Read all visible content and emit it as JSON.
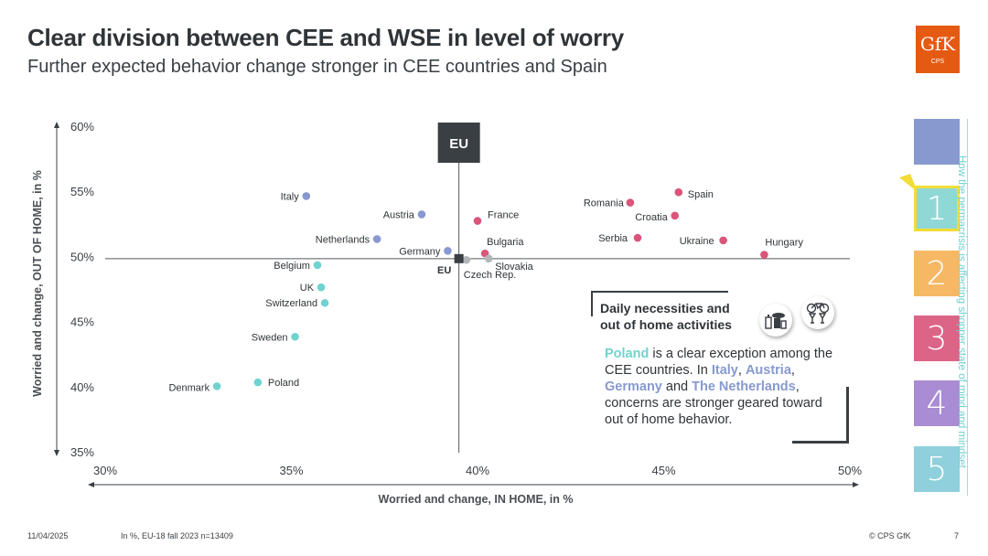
{
  "header": {
    "title": "Clear division between CEE and WSE in level of worry",
    "subtitle": "Further expected behavior change stronger in CEE countries and Spain",
    "logo_text": "GfK",
    "logo_sub": "CPS"
  },
  "chart_data": {
    "type": "scatter",
    "xlabel": "Worried and change, IN HOME, in %",
    "ylabel": "Worried and change, OUT OF HOME, in %",
    "xlim": [
      30,
      50
    ],
    "ylim": [
      35,
      60
    ],
    "x_ticks": [
      30,
      35,
      40,
      45,
      50
    ],
    "x_tick_labels": [
      "30%",
      "35%",
      "40%",
      "45%",
      "50%"
    ],
    "y_ticks": [
      35,
      40,
      45,
      50,
      55,
      60
    ],
    "y_tick_labels": [
      "35%",
      "40%",
      "45%",
      "50%",
      "55%",
      "60%"
    ],
    "reference": {
      "label": "EU",
      "box_label": "EU",
      "x": 39.5,
      "y": 49.9
    },
    "colors": {
      "teal": "#6fd3cf",
      "blue": "#8799cf",
      "pink": "#d9557a",
      "grey": "#b3b6b9",
      "dark": "#3a3f44"
    },
    "points": [
      {
        "name": "Italy",
        "x": 35.4,
        "y": 54.7,
        "group": "blue"
      },
      {
        "name": "Austria",
        "x": 38.5,
        "y": 53.3,
        "group": "blue"
      },
      {
        "name": "Netherlands",
        "x": 37.3,
        "y": 51.4,
        "group": "blue"
      },
      {
        "name": "Germany",
        "x": 39.2,
        "y": 50.5,
        "group": "blue"
      },
      {
        "name": "Belgium",
        "x": 35.7,
        "y": 49.4,
        "group": "teal"
      },
      {
        "name": "UK",
        "x": 35.8,
        "y": 47.7,
        "group": "teal"
      },
      {
        "name": "Switzerland",
        "x": 35.9,
        "y": 46.5,
        "group": "teal"
      },
      {
        "name": "Sweden",
        "x": 35.1,
        "y": 43.9,
        "group": "teal"
      },
      {
        "name": "Poland",
        "x": 34.1,
        "y": 40.4,
        "group": "teal"
      },
      {
        "name": "Denmark",
        "x": 33.0,
        "y": 40.1,
        "group": "teal"
      },
      {
        "name": "France",
        "x": 40.0,
        "y": 52.8,
        "group": "pink"
      },
      {
        "name": "Bulgaria",
        "x": 40.2,
        "y": 50.3,
        "group": "pink"
      },
      {
        "name": "Czech Rep.",
        "x": 39.7,
        "y": 49.8,
        "group": "grey"
      },
      {
        "name": "Slovakia",
        "x": 40.3,
        "y": 49.9,
        "group": "grey"
      },
      {
        "name": "Romania",
        "x": 44.1,
        "y": 54.2,
        "group": "pink"
      },
      {
        "name": "Spain",
        "x": 45.4,
        "y": 55.0,
        "group": "pink"
      },
      {
        "name": "Croatia",
        "x": 45.3,
        "y": 53.2,
        "group": "pink"
      },
      {
        "name": "Serbia",
        "x": 44.3,
        "y": 51.5,
        "group": "pink"
      },
      {
        "name": "Ukraine",
        "x": 46.6,
        "y": 51.3,
        "group": "pink"
      },
      {
        "name": "Hungary",
        "x": 47.7,
        "y": 50.2,
        "group": "pink"
      }
    ]
  },
  "infobox": {
    "heading_line1": "Daily necessities and",
    "heading_line2": "out of home activities",
    "icon1": "groceries-icon",
    "icon2": "bike-and-drinks-icon",
    "body": {
      "poland": "Poland",
      "t1": " is a clear exception among the CEE countries. In ",
      "italy": "Italy",
      "t2": ", ",
      "austria": "Austria",
      "t3": ", ",
      "germany": "Germany",
      "t4": " and ",
      "netherlands": "The Netherlands",
      "t5": ", concerns are stronger geared toward out of home behavior."
    }
  },
  "sidebar": {
    "vertical_text": "How the permacrisis is affecting shopper state of mind and mindset",
    "boxes": [
      {
        "label": "",
        "color": "#8799cf"
      },
      {
        "label": "1",
        "color": "#8fd8d6"
      },
      {
        "label": "2",
        "color": "#f7b866"
      },
      {
        "label": "3",
        "color": "#dc6487"
      },
      {
        "label": "4",
        "color": "#a98cd3"
      },
      {
        "label": "5",
        "color": "#8fd0dc"
      }
    ],
    "active_border": "#f2dc39"
  },
  "footer": {
    "date": "11/04/2025",
    "note": "In %, EU-18 fall 2023 n=13409",
    "copyright": "© CPS GfK",
    "page": "7"
  }
}
